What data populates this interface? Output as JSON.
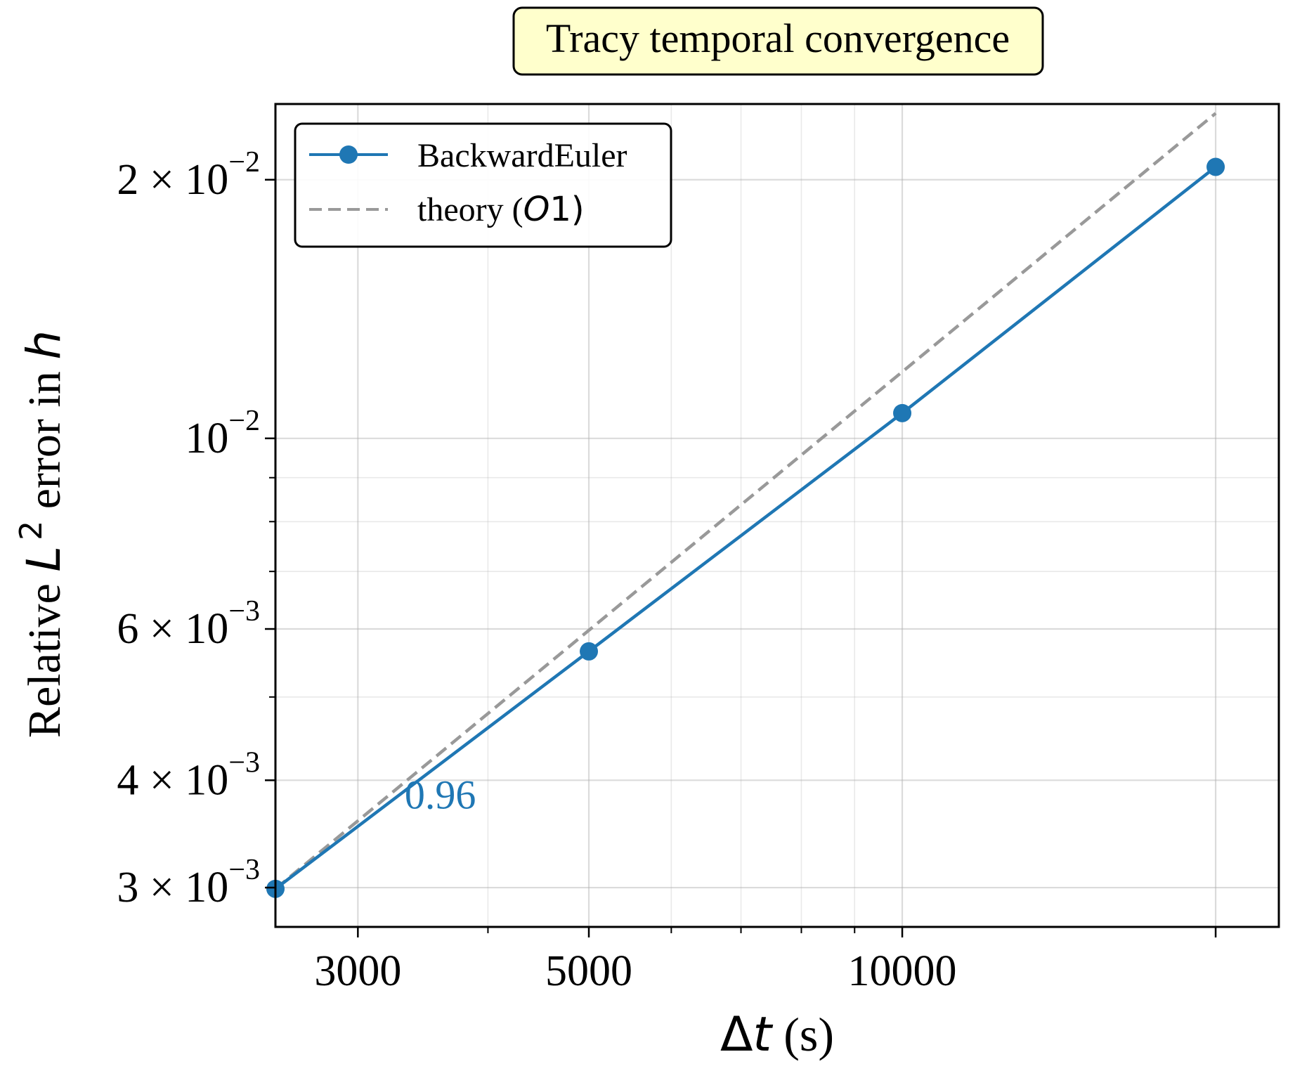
{
  "chart_data": {
    "type": "line",
    "title": "Tracy temporal convergence",
    "xlabel": {
      "prefix": "Δ",
      "var": "t",
      "unit": " (s)"
    },
    "ylabel": {
      "text1": "Relative ",
      "var1": "L",
      "sup": "2",
      "text2": " error in ",
      "var2": "h"
    },
    "x_scale": "log",
    "y_scale": "log",
    "xlim": [
      2500,
      23000
    ],
    "ylim": [
      0.0027,
      0.0245
    ],
    "x_ticks": [
      {
        "value": 3000,
        "label": "3000"
      },
      {
        "value": 5000,
        "label": "5000"
      },
      {
        "value": 10000,
        "label": "10000"
      },
      {
        "value": 20000,
        "label": ""
      }
    ],
    "y_ticks": [
      {
        "value": 0.003,
        "mant": "3 × 10",
        "exp": "−3"
      },
      {
        "value": 0.004,
        "mant": "4 × 10",
        "exp": "−3"
      },
      {
        "value": 0.006,
        "mant": "6 × 10",
        "exp": "−3"
      },
      {
        "value": 0.01,
        "mant": "10",
        "exp": "−2"
      },
      {
        "value": 0.02,
        "mant": "2 × 10",
        "exp": "−2"
      }
    ],
    "grid": true,
    "legend_position": "top-left",
    "series": [
      {
        "name": "BackwardEuler",
        "color": "#1f77b4",
        "style": "solid-with-markers",
        "x": [
          2500,
          5000,
          10000,
          20000
        ],
        "y": [
          0.00299,
          0.00565,
          0.0107,
          0.0207
        ]
      },
      {
        "name": "theory (O1)",
        "name_parts": {
          "before": "theory (",
          "italic": "O",
          "after": "1)"
        },
        "color": "#999999",
        "style": "dashed",
        "x": [
          2500,
          20000
        ],
        "y": [
          0.00299,
          0.0239
        ]
      }
    ],
    "annotations": [
      {
        "text": "0.96",
        "x": 3600,
        "y": 0.00385,
        "color": "#1f77b4"
      }
    ]
  }
}
